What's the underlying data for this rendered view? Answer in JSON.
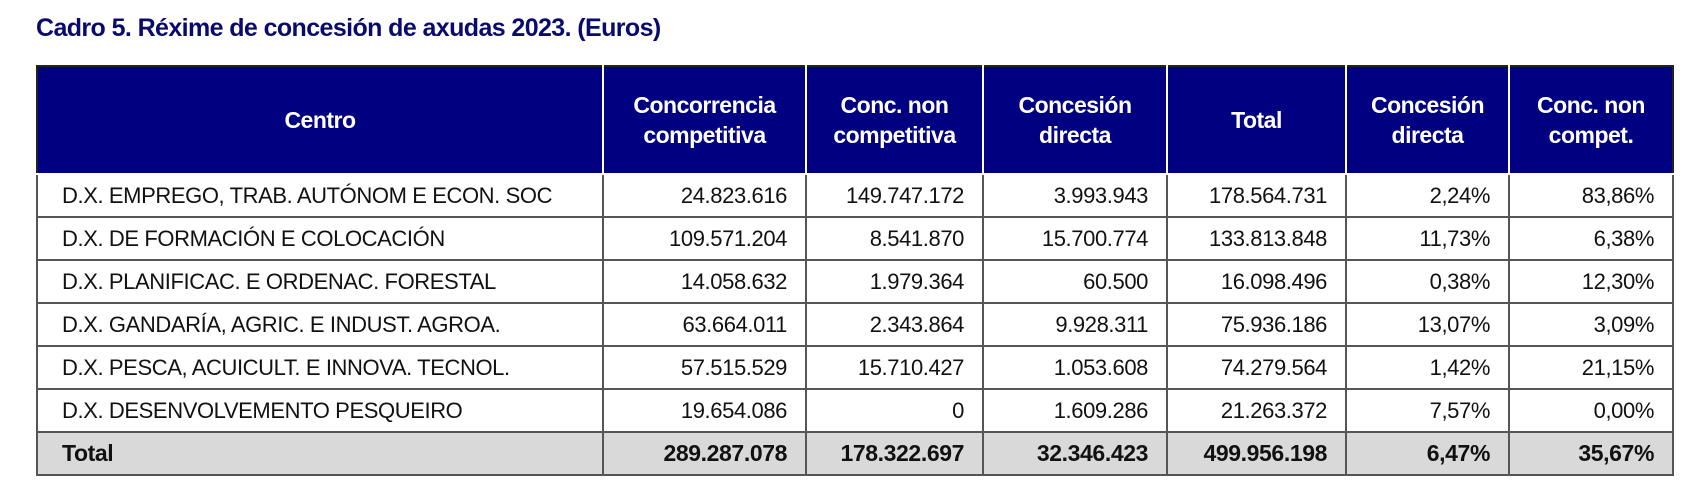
{
  "title": "Cadro 5. Réxime de concesión de axudas 2023. (Euros)",
  "columns": [
    {
      "line1": "Centro",
      "line2": ""
    },
    {
      "line1": "Concorrencia",
      "line2": "competitiva"
    },
    {
      "line1": "Conc. non",
      "line2": "competitiva"
    },
    {
      "line1": "Concesión",
      "line2": "directa"
    },
    {
      "line1": "Total",
      "line2": ""
    },
    {
      "line1": "Concesión",
      "line2": "directa"
    },
    {
      "line1": "Conc. non",
      "line2": "compet."
    }
  ],
  "rows": [
    [
      "D.X. EMPREGO, TRAB. AUTÓNOM E ECON. SOC",
      "24.823.616",
      "149.747.172",
      "3.993.943",
      "178.564.731",
      "2,24%",
      "83,86%"
    ],
    [
      "D.X. DE FORMACIÓN E COLOCACIÓN",
      "109.571.204",
      "8.541.870",
      "15.700.774",
      "133.813.848",
      "11,73%",
      "6,38%"
    ],
    [
      "D.X. PLANIFICAC. E ORDENAC. FORESTAL",
      "14.058.632",
      "1.979.364",
      "60.500",
      "16.098.496",
      "0,38%",
      "12,30%"
    ],
    [
      "D.X. GANDARÍA, AGRIC. E INDUST. AGROA.",
      "63.664.011",
      "2.343.864",
      "9.928.311",
      "75.936.186",
      "13,07%",
      "3,09%"
    ],
    [
      "D.X. PESCA, ACUICULT. E INNOVA. TECNOL.",
      "57.515.529",
      "15.710.427",
      "1.053.608",
      "74.279.564",
      "1,42%",
      "21,15%"
    ],
    [
      "D.X. DESENVOLVEMENTO PESQUEIRO",
      "19.654.086",
      "0",
      "1.609.286",
      "21.263.372",
      "7,57%",
      "0,00%"
    ]
  ],
  "total": [
    "Total",
    "289.287.078",
    "178.322.697",
    "32.346.423",
    "499.956.198",
    "6,47%",
    "35,67%"
  ],
  "colors": {
    "header_bg": "#000080",
    "title": "#0a0a6e",
    "total_bg": "#d9d9d9"
  }
}
